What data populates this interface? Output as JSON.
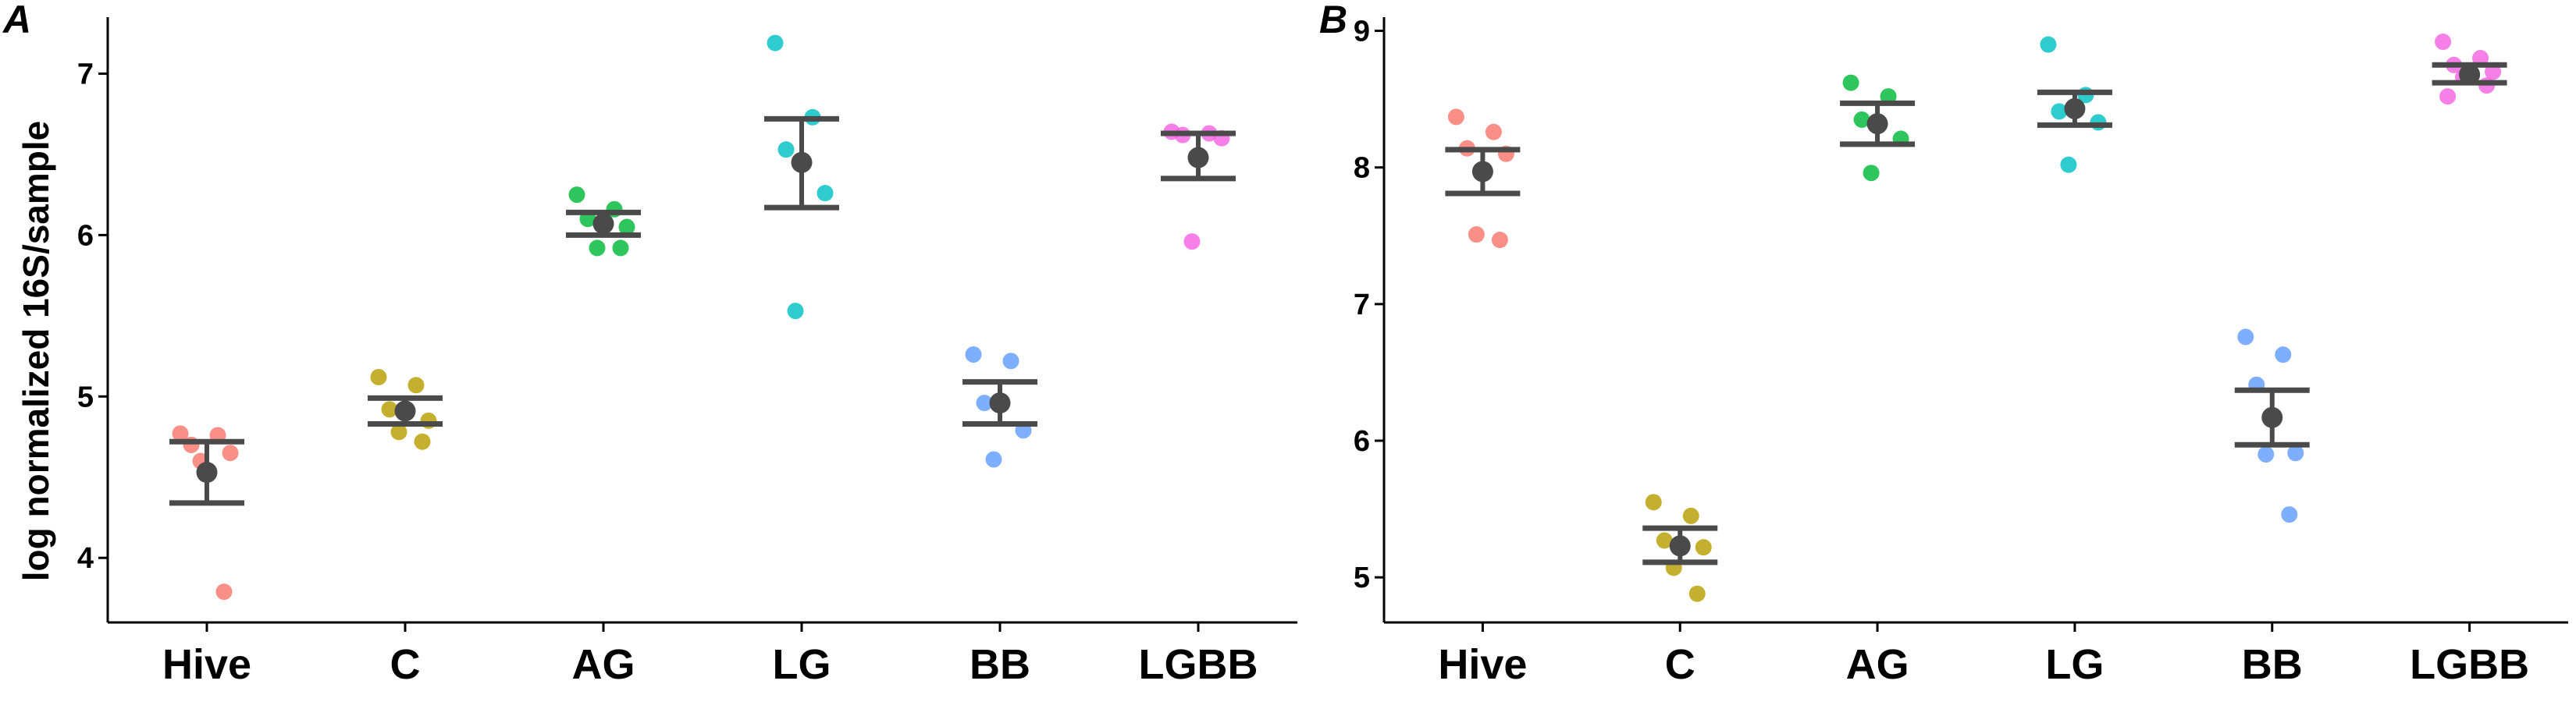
{
  "chart_data": [
    {
      "panel": "A",
      "type": "scatter",
      "ylabel": "log normalized 16S/sample",
      "ylim": [
        3.6,
        7.35
      ],
      "yticks": [
        4,
        5,
        6,
        7
      ],
      "categories": [
        "Hive",
        "C",
        "AG",
        "LG",
        "BB",
        "LGBB"
      ],
      "groups": [
        {
          "category": "Hive",
          "mean": 4.53,
          "err_low": 4.34,
          "err_high": 4.72,
          "points": [
            4.77,
            4.76,
            4.7,
            4.65,
            4.6,
            3.79
          ]
        },
        {
          "category": "C",
          "mean": 4.91,
          "err_low": 4.83,
          "err_high": 4.99,
          "points": [
            5.12,
            5.07,
            4.92,
            4.85,
            4.78,
            4.72
          ]
        },
        {
          "category": "AG",
          "mean": 6.07,
          "err_low": 6.0,
          "err_high": 6.14,
          "points": [
            6.25,
            6.16,
            6.1,
            6.05,
            5.92,
            5.92
          ]
        },
        {
          "category": "LG",
          "mean": 6.45,
          "err_low": 6.17,
          "err_high": 6.72,
          "points": [
            7.19,
            6.73,
            6.53,
            6.26,
            5.53
          ]
        },
        {
          "category": "BB",
          "mean": 4.96,
          "err_low": 4.83,
          "err_high": 5.09,
          "points": [
            5.26,
            5.22,
            4.96,
            4.79,
            4.61
          ]
        },
        {
          "category": "LGBB",
          "mean": 6.48,
          "err_low": 6.35,
          "err_high": 6.63,
          "points": [
            6.64,
            6.63,
            6.62,
            6.6,
            5.96
          ]
        }
      ]
    },
    {
      "panel": "B",
      "type": "scatter",
      "ylabel": "",
      "ylim": [
        4.67,
        9.1
      ],
      "yticks": [
        5,
        6,
        7,
        8,
        9
      ],
      "categories": [
        "Hive",
        "C",
        "AG",
        "LG",
        "BB",
        "LGBB"
      ],
      "groups": [
        {
          "category": "Hive",
          "mean": 7.97,
          "err_low": 7.81,
          "err_high": 8.13,
          "points": [
            8.37,
            8.26,
            8.14,
            8.1,
            7.51,
            7.47
          ]
        },
        {
          "category": "C",
          "mean": 5.23,
          "err_low": 5.11,
          "err_high": 5.36,
          "points": [
            5.55,
            5.45,
            5.27,
            5.22,
            5.07,
            4.88
          ]
        },
        {
          "category": "AG",
          "mean": 8.32,
          "err_low": 8.17,
          "err_high": 8.47,
          "points": [
            8.62,
            8.52,
            8.35,
            8.21,
            7.96
          ]
        },
        {
          "category": "LG",
          "mean": 8.43,
          "err_low": 8.31,
          "err_high": 8.55,
          "points": [
            8.9,
            8.53,
            8.41,
            8.33,
            8.02
          ]
        },
        {
          "category": "BB",
          "mean": 6.17,
          "err_low": 5.97,
          "err_high": 6.37,
          "points": [
            6.76,
            6.63,
            6.41,
            5.91,
            5.9,
            5.46
          ]
        },
        {
          "category": "LGBB",
          "mean": 8.68,
          "err_low": 8.62,
          "err_high": 8.75,
          "points": [
            8.92,
            8.8,
            8.75,
            8.7,
            8.66,
            8.6,
            8.52
          ]
        }
      ]
    }
  ],
  "colors": {
    "Hive": "#F8766D",
    "C": "#B79F00",
    "AG": "#00BA38",
    "LG": "#00BFC4",
    "BB": "#619CFF",
    "LGBB": "#F564E3",
    "summary": "#4a4a4a"
  }
}
